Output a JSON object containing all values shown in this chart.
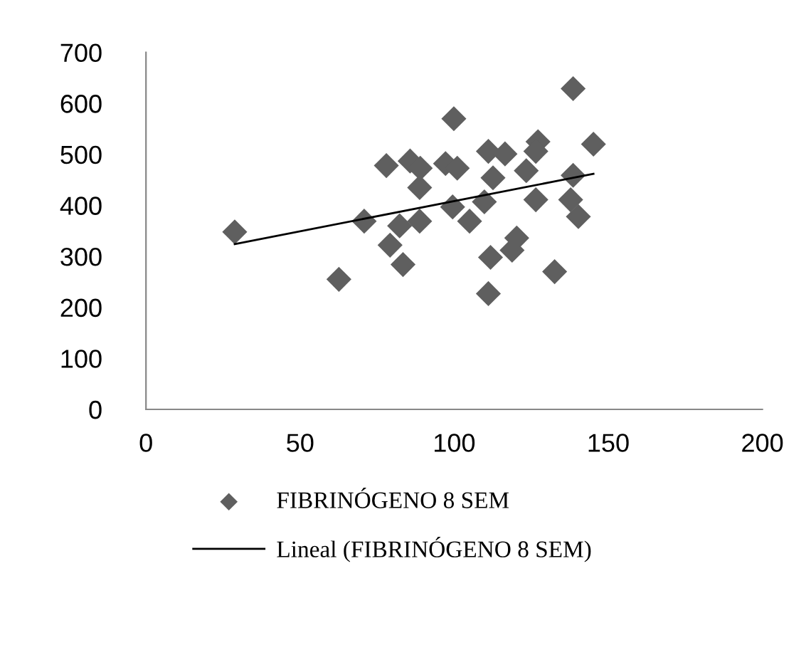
{
  "chart_data": {
    "type": "scatter",
    "xlim": [
      0,
      200
    ],
    "xticks": [
      0,
      50,
      100,
      150,
      200
    ],
    "ylim": [
      0,
      700
    ],
    "yticks": [
      0,
      100,
      200,
      300,
      400,
      500,
      600,
      700
    ],
    "grid": false,
    "legend": "bottom",
    "series": [
      {
        "name": "FIBRINÓGENO 8 SEM",
        "marker": "diamond",
        "color": "#5f5f5f",
        "x": [
          28.8,
          62.6,
          70.8,
          78,
          79.2,
          83.4,
          82.3,
          85.7,
          88.8,
          88.8,
          89,
          97.2,
          101,
          99.9,
          99.5,
          105,
          109.8,
          111.1,
          116.5,
          112.6,
          111.8,
          111.1,
          118.8,
          120.3,
          123.4,
          126.5,
          127.2,
          126.5,
          132.6,
          138.6,
          145.2,
          138.6,
          137.8,
          140.3
        ],
        "values": [
          348,
          255,
          369,
          478,
          322,
          284,
          360,
          487,
          435,
          369,
          473,
          482,
          473,
          570,
          397,
          369,
          407,
          506,
          501,
          454,
          298,
          227,
          312,
          336,
          468,
          411,
          525,
          506,
          270,
          629,
          520,
          459,
          411,
          378
        ]
      },
      {
        "name": "Lineal (FIBRINÓGENO 8 SEM)",
        "type": "line",
        "color": "#000000",
        "line_style": "solid",
        "marker": "none",
        "x": [
          28.8,
          145.2
        ],
        "values": [
          324,
          462
        ]
      }
    ]
  }
}
